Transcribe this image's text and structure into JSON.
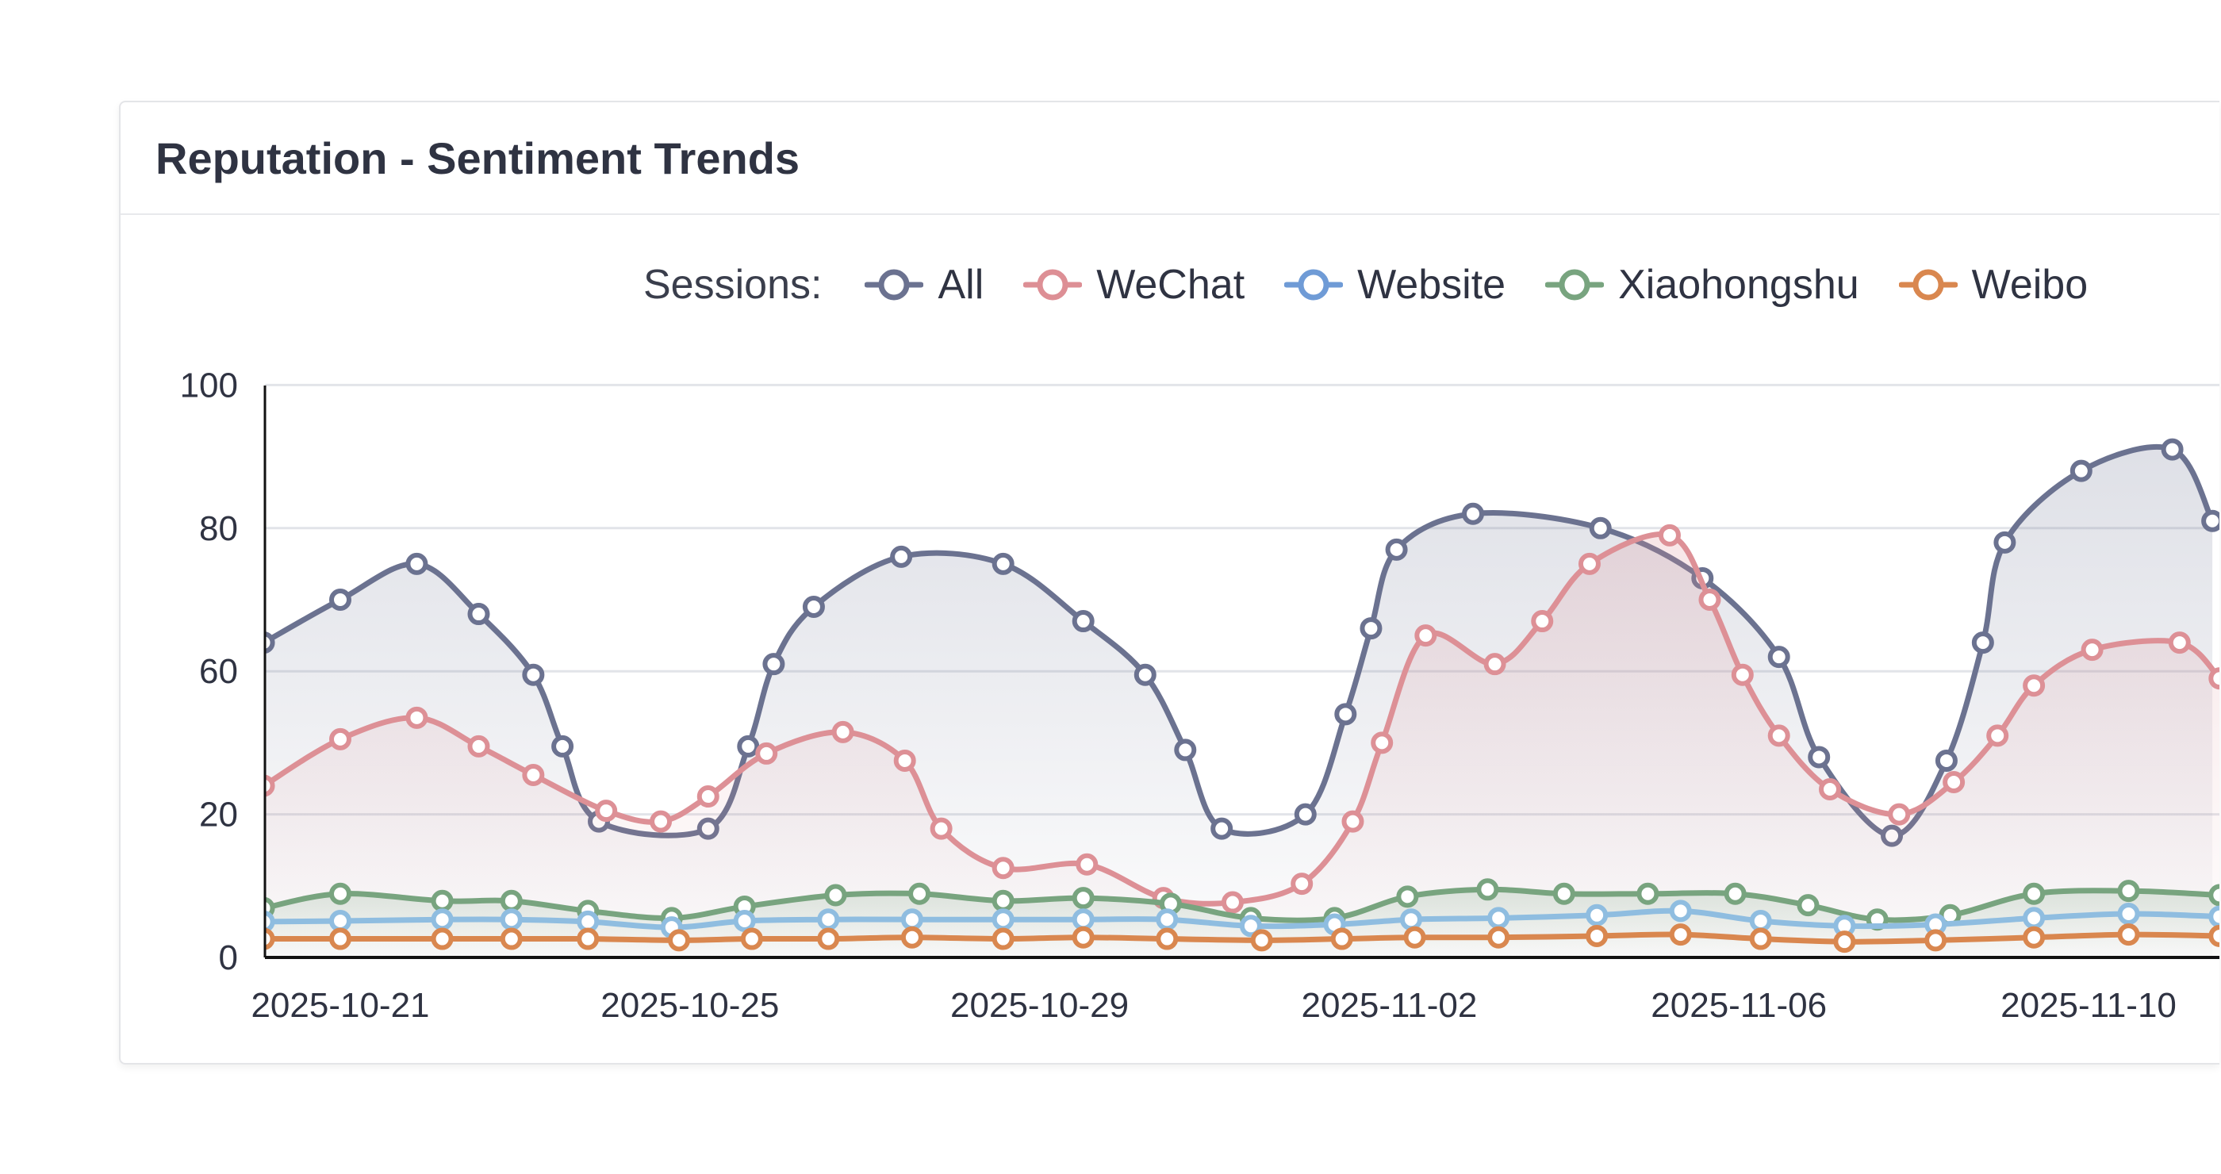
{
  "card": {
    "title": "Reputation - Sentiment Trends"
  },
  "legend": {
    "label": "Sessions:",
    "items": [
      {
        "name": "All",
        "color": "#6b7290"
      },
      {
        "name": "WeChat",
        "color": "#dd8f95"
      },
      {
        "name": "Website",
        "color": "#6f9bd6"
      },
      {
        "name": "Xiaohongshu",
        "color": "#78a47f"
      },
      {
        "name": "Weibo",
        "color": "#d9874f"
      }
    ]
  },
  "chart_data": {
    "type": "line",
    "title": "Reputation - Sentiment Trends",
    "xlabel": "",
    "ylabel": "",
    "grid": true,
    "legend_position": "top-right",
    "ylim": [
      0,
      100
    ],
    "yticks": [
      0,
      20,
      60,
      80,
      100
    ],
    "xticks": [
      "2025-10-21",
      "2025-10-25",
      "2025-10-29",
      "2025-11-02",
      "2025-11-06",
      "2025-11-10"
    ],
    "series": [
      {
        "name": "All",
        "color": "#6b7290",
        "fill": true,
        "points": [
          [
            "2025-10-20T03:00",
            64
          ],
          [
            "2025-10-21T00:00",
            70
          ],
          [
            "2025-10-21T21:00",
            75
          ],
          [
            "2025-10-22T14:00",
            68
          ],
          [
            "2025-10-23T05:00",
            59
          ],
          [
            "2025-10-23T13:00",
            39
          ],
          [
            "2025-10-23T23:00",
            19
          ],
          [
            "2025-10-25T05:00",
            18
          ],
          [
            "2025-10-25T16:00",
            39
          ],
          [
            "2025-10-25T23:00",
            61
          ],
          [
            "2025-10-26T10:00",
            69
          ],
          [
            "2025-10-27T10:00",
            76
          ],
          [
            "2025-10-28T14:00",
            75
          ],
          [
            "2025-10-29T12:00",
            67
          ],
          [
            "2025-10-30T05:00",
            59
          ],
          [
            "2025-10-30T16:00",
            38
          ],
          [
            "2025-10-31T02:00",
            18
          ],
          [
            "2025-11-01T01:00",
            20
          ],
          [
            "2025-11-01T12:00",
            48
          ],
          [
            "2025-11-01T19:00",
            66
          ],
          [
            "2025-11-02T02:00",
            77
          ],
          [
            "2025-11-02T23:00",
            82
          ],
          [
            "2025-11-04T10:00",
            80
          ],
          [
            "2025-11-05T14:00",
            73
          ],
          [
            "2025-11-06T11:00",
            62
          ],
          [
            "2025-11-06T22:00",
            36
          ],
          [
            "2025-11-07T18:00",
            17
          ],
          [
            "2025-11-08T09:00",
            35
          ],
          [
            "2025-11-08T19:00",
            64
          ],
          [
            "2025-11-09T01:00",
            78
          ],
          [
            "2025-11-09T22:00",
            88
          ],
          [
            "2025-11-10T23:00",
            91
          ],
          [
            "2025-11-11T10:00",
            81
          ]
        ]
      },
      {
        "name": "WeChat",
        "color": "#dd9096",
        "fill": true,
        "points": [
          [
            "2025-10-20T03:00",
            28
          ],
          [
            "2025-10-21T00:00",
            41
          ],
          [
            "2025-10-21T21:00",
            47
          ],
          [
            "2025-10-22T14:00",
            39
          ],
          [
            "2025-10-23T05:00",
            31
          ],
          [
            "2025-10-24T01:00",
            21
          ],
          [
            "2025-10-24T16:00",
            19
          ],
          [
            "2025-10-25T05:00",
            25
          ],
          [
            "2025-10-25T21:00",
            37
          ],
          [
            "2025-10-26T18:00",
            43
          ],
          [
            "2025-10-27T11:00",
            35
          ],
          [
            "2025-10-27T21:00",
            18
          ],
          [
            "2025-10-28T14:00",
            12.5
          ],
          [
            "2025-10-29T13:00",
            13
          ],
          [
            "2025-10-30T10:00",
            8.3
          ],
          [
            "2025-10-31T05:00",
            7.7
          ],
          [
            "2025-11-01T00:00",
            10.3
          ],
          [
            "2025-11-01T14:00",
            19
          ],
          [
            "2025-11-01T22:00",
            40
          ],
          [
            "2025-11-02T10:00",
            65
          ],
          [
            "2025-11-03T05:00",
            61
          ],
          [
            "2025-11-03T18:00",
            67
          ],
          [
            "2025-11-04T07:00",
            75
          ],
          [
            "2025-11-05T05:00",
            79
          ],
          [
            "2025-11-05T16:00",
            70
          ],
          [
            "2025-11-06T01:00",
            59
          ],
          [
            "2025-11-06T11:00",
            42
          ],
          [
            "2025-11-07T01:00",
            27
          ],
          [
            "2025-11-07T20:00",
            20
          ],
          [
            "2025-11-08T11:00",
            29
          ],
          [
            "2025-11-08T23:00",
            42
          ],
          [
            "2025-11-09T09:00",
            56
          ],
          [
            "2025-11-10T01:00",
            63
          ],
          [
            "2025-11-11T01:00",
            64
          ],
          [
            "2025-11-11T12:00",
            58
          ]
        ]
      },
      {
        "name": "Xiaohongshu",
        "color": "#78a47f",
        "fill": true,
        "points": [
          [
            "2025-10-20T03:00",
            6.9
          ],
          [
            "2025-10-21T00:00",
            8.9
          ],
          [
            "2025-10-22T04:00",
            7.9
          ],
          [
            "2025-10-22T23:00",
            7.9
          ],
          [
            "2025-10-23T20:00",
            6.5
          ],
          [
            "2025-10-24T19:00",
            5.5
          ],
          [
            "2025-10-25T15:00",
            7.1
          ],
          [
            "2025-10-26T16:00",
            8.7
          ],
          [
            "2025-10-27T15:00",
            8.9
          ],
          [
            "2025-10-28T14:00",
            7.9
          ],
          [
            "2025-10-29T12:00",
            8.3
          ],
          [
            "2025-10-30T12:00",
            7.5
          ],
          [
            "2025-10-31T10:00",
            5.5
          ],
          [
            "2025-11-01T09:00",
            5.5
          ],
          [
            "2025-11-02T05:00",
            8.5
          ],
          [
            "2025-11-03T03:00",
            9.5
          ],
          [
            "2025-11-04T00:00",
            8.9
          ],
          [
            "2025-11-04T23:00",
            8.9
          ],
          [
            "2025-11-05T23:00",
            8.9
          ],
          [
            "2025-11-06T19:00",
            7.3
          ],
          [
            "2025-11-07T14:00",
            5.3
          ],
          [
            "2025-11-08T10:00",
            5.9
          ],
          [
            "2025-11-09T09:00",
            8.9
          ],
          [
            "2025-11-10T11:00",
            9.3
          ],
          [
            "2025-11-11T12:00",
            8.7
          ]
        ]
      },
      {
        "name": "Website",
        "color": "#8fbde0",
        "fill": false,
        "points": [
          [
            "2025-10-20T03:00",
            5.0
          ],
          [
            "2025-10-21T00:00",
            5.1
          ],
          [
            "2025-10-22T04:00",
            5.3
          ],
          [
            "2025-10-22T23:00",
            5.3
          ],
          [
            "2025-10-23T20:00",
            5.0
          ],
          [
            "2025-10-24T19:00",
            4.2
          ],
          [
            "2025-10-25T15:00",
            5.1
          ],
          [
            "2025-10-26T14:00",
            5.3
          ],
          [
            "2025-10-27T13:00",
            5.3
          ],
          [
            "2025-10-28T14:00",
            5.3
          ],
          [
            "2025-10-29T12:00",
            5.3
          ],
          [
            "2025-10-30T11:00",
            5.3
          ],
          [
            "2025-10-31T10:00",
            4.4
          ],
          [
            "2025-11-01T09:00",
            4.6
          ],
          [
            "2025-11-02T06:00",
            5.3
          ],
          [
            "2025-11-03T06:00",
            5.5
          ],
          [
            "2025-11-04T09:00",
            5.9
          ],
          [
            "2025-11-05T08:00",
            6.5
          ],
          [
            "2025-11-06T06:00",
            5.1
          ],
          [
            "2025-11-07T05:00",
            4.4
          ],
          [
            "2025-11-08T06:00",
            4.6
          ],
          [
            "2025-11-09T09:00",
            5.5
          ],
          [
            "2025-11-10T11:00",
            6.1
          ],
          [
            "2025-11-11T12:00",
            5.7
          ]
        ]
      },
      {
        "name": "Weibo",
        "color": "#d9874f",
        "fill": false,
        "points": [
          [
            "2025-10-20T03:00",
            2.6
          ],
          [
            "2025-10-21T00:00",
            2.6
          ],
          [
            "2025-10-22T04:00",
            2.6
          ],
          [
            "2025-10-22T23:00",
            2.6
          ],
          [
            "2025-10-23T20:00",
            2.6
          ],
          [
            "2025-10-24T21:00",
            2.4
          ],
          [
            "2025-10-25T17:00",
            2.6
          ],
          [
            "2025-10-26T14:00",
            2.6
          ],
          [
            "2025-10-27T13:00",
            2.8
          ],
          [
            "2025-10-28T14:00",
            2.6
          ],
          [
            "2025-10-29T12:00",
            2.8
          ],
          [
            "2025-10-30T11:00",
            2.6
          ],
          [
            "2025-10-31T13:00",
            2.4
          ],
          [
            "2025-11-01T11:00",
            2.6
          ],
          [
            "2025-11-02T07:00",
            2.8
          ],
          [
            "2025-11-03T06:00",
            2.8
          ],
          [
            "2025-11-04T09:00",
            3.0
          ],
          [
            "2025-11-05T08:00",
            3.2
          ],
          [
            "2025-11-06T06:00",
            2.6
          ],
          [
            "2025-11-07T05:00",
            2.2
          ],
          [
            "2025-11-08T06:00",
            2.4
          ],
          [
            "2025-11-09T09:00",
            2.8
          ],
          [
            "2025-11-10T11:00",
            3.2
          ],
          [
            "2025-11-11T12:00",
            3.0
          ]
        ]
      }
    ]
  }
}
